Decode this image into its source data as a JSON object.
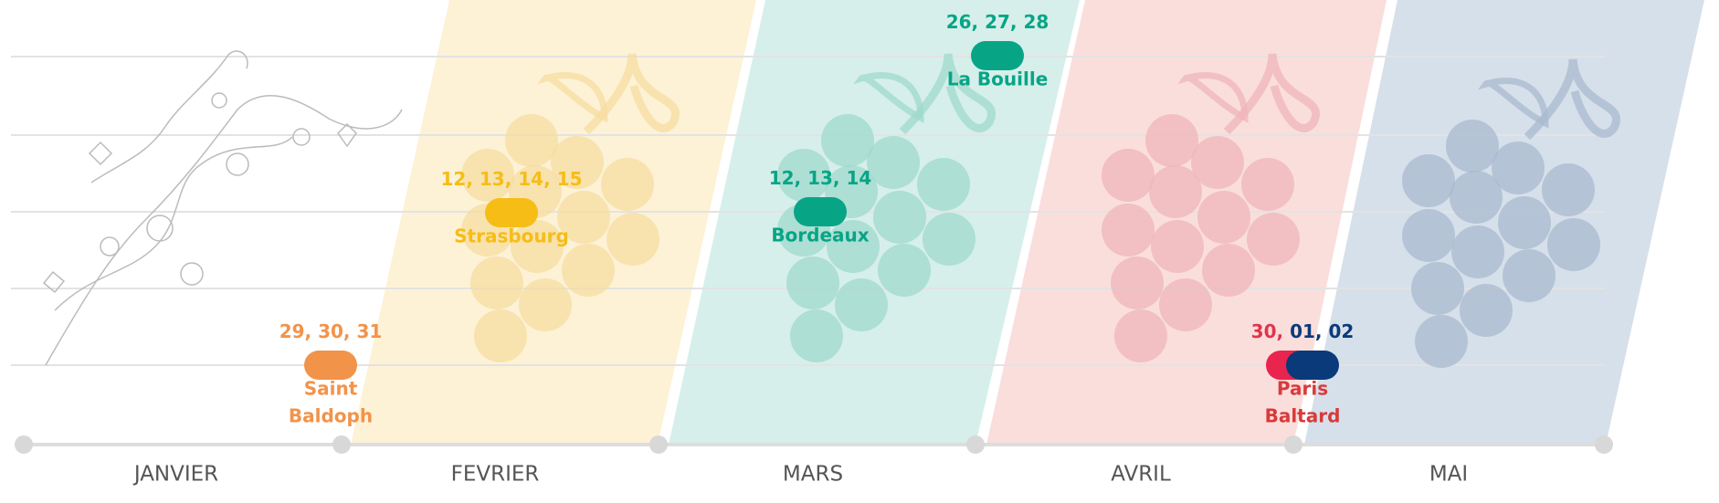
{
  "months": [
    "JANVIER",
    "FEVRIER",
    "MARS",
    "AVRIL",
    "MAI"
  ],
  "events": [
    {
      "dates": [
        {
          "text": "29, 30, 31",
          "color": "#f2934a"
        }
      ],
      "label": [
        "Saint",
        "Baldoph"
      ],
      "color": "#f2934a",
      "pills": [
        "#f2934a"
      ]
    },
    {
      "dates": [
        {
          "text": "12, 13, 14, 15",
          "color": "#f6bd16"
        }
      ],
      "label": [
        "Strasbourg"
      ],
      "color": "#f6bd16",
      "pills": [
        "#f6bd16"
      ]
    },
    {
      "dates": [
        {
          "text": "12, 13, 14",
          "color": "#07a586"
        }
      ],
      "label": [
        "Bordeaux"
      ],
      "color": "#07a586",
      "pills": [
        "#07a586"
      ]
    },
    {
      "dates": [
        {
          "text": "26, 27, 28",
          "color": "#07a586"
        }
      ],
      "label": [
        "La Bouille"
      ],
      "color": "#07a586",
      "pills": [
        "#07a586"
      ]
    },
    {
      "dates": [
        {
          "text": "30,",
          "color": "#e0364a"
        },
        {
          "text": "01, 02",
          "color": "#0b3a7a"
        }
      ],
      "label": [
        "Paris",
        "Baltard"
      ],
      "color": "#d93a3a",
      "pills": [
        "#e8244f",
        "#0b3a7a"
      ]
    }
  ]
}
